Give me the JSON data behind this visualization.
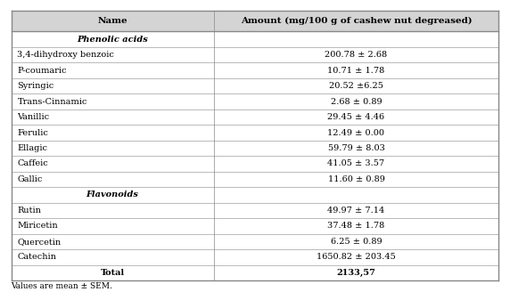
{
  "col_headers": [
    "Name",
    "Amount (mg/100 g of cashew nut degreased)"
  ],
  "rows": [
    {
      "name": "Phenolic acids",
      "value": "",
      "italic": true,
      "bold": true,
      "header_row": true
    },
    {
      "name": "3,4-dihydroxy benzoic",
      "value": "200.78 ± 2.68",
      "italic": false,
      "bold": false,
      "header_row": false
    },
    {
      "name": "P-coumaric",
      "value": "10.71 ± 1.78",
      "italic": false,
      "bold": false,
      "header_row": false
    },
    {
      "name": "Syringic",
      "value": "20.52 ±6.25",
      "italic": false,
      "bold": false,
      "header_row": false
    },
    {
      "name": "Trans-Cinnamic",
      "value": "2.68 ± 0.89",
      "italic": false,
      "bold": false,
      "header_row": false
    },
    {
      "name": "Vanillic",
      "value": "29.45 ± 4.46",
      "italic": false,
      "bold": false,
      "header_row": false
    },
    {
      "name": "Ferulic",
      "value": "12.49 ± 0.00",
      "italic": false,
      "bold": false,
      "header_row": false
    },
    {
      "name": "Ellagic",
      "value": "59.79 ± 8.03",
      "italic": false,
      "bold": false,
      "header_row": false
    },
    {
      "name": "Caffeic",
      "value": "41.05 ± 3.57",
      "italic": false,
      "bold": false,
      "header_row": false
    },
    {
      "name": "Gallic",
      "value": "11.60 ± 0.89",
      "italic": false,
      "bold": false,
      "header_row": false
    },
    {
      "name": "Flavonoids",
      "value": "",
      "italic": true,
      "bold": true,
      "header_row": true
    },
    {
      "name": "Rutin",
      "value": "49.97 ± 7.14",
      "italic": false,
      "bold": false,
      "header_row": false
    },
    {
      "name": "Miricetin",
      "value": "37.48 ± 1.78",
      "italic": false,
      "bold": false,
      "header_row": false
    },
    {
      "name": "Quercetin",
      "value": "6.25 ± 0.89",
      "italic": false,
      "bold": false,
      "header_row": false
    },
    {
      "name": "Catechin",
      "value": "1650.82 ± 203.45",
      "italic": false,
      "bold": false,
      "header_row": false
    },
    {
      "name": "Total",
      "value": "2133,57",
      "italic": false,
      "bold": true,
      "header_row": false
    }
  ],
  "footnote": "Values are mean ± SEM.",
  "col_split": 0.415,
  "bg_color": "#ffffff",
  "header_bg": "#d4d4d4",
  "line_color": "#888888",
  "text_color": "#000000",
  "header_font_size": 7.5,
  "body_font_size": 7.0,
  "footnote_font_size": 6.5
}
